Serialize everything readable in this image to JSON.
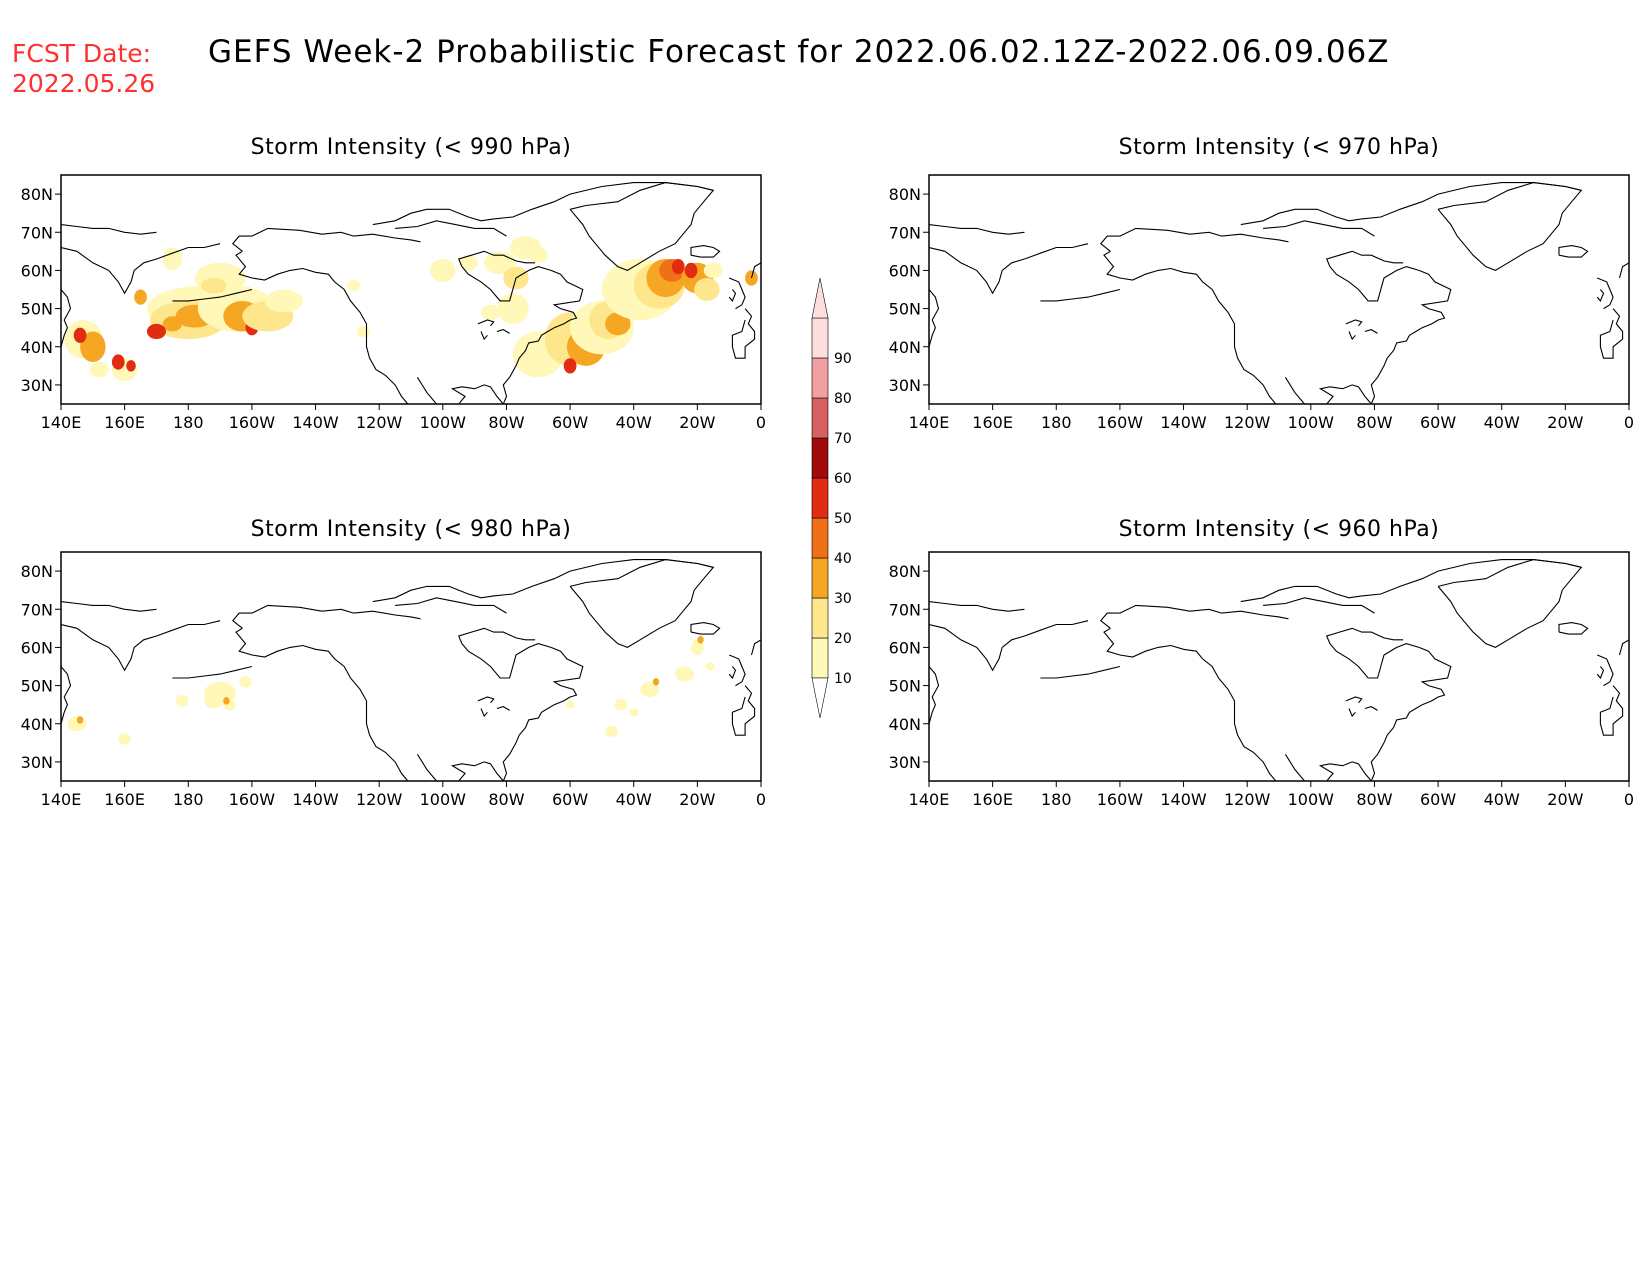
{
  "header": {
    "fcst_label": "FCST Date:",
    "fcst_date": "2022.05.26",
    "title": "GEFS Week-2 Probabilistic Forecast for 2022.06.02.12Z-2022.06.09.06Z"
  },
  "axes": {
    "lat_labels": [
      "30N",
      "40N",
      "50N",
      "60N",
      "70N",
      "80N"
    ],
    "lat_values": [
      30,
      40,
      50,
      60,
      70,
      80
    ],
    "lon_labels": [
      "140E",
      "160E",
      "180",
      "160W",
      "140W",
      "120W",
      "100W",
      "80W",
      "60W",
      "40W",
      "20W",
      "0"
    ],
    "lon_range": [
      140,
      360
    ],
    "lat_range": [
      25,
      85
    ]
  },
  "panels": [
    {
      "title": "Storm Intensity (< 990 hPa)",
      "probability_fields": "widespread"
    },
    {
      "title": "Storm Intensity (< 970 hPa)",
      "probability_fields": "none"
    },
    {
      "title": "Storm Intensity (< 980 hPa)",
      "probability_fields": "sparse"
    },
    {
      "title": "Storm Intensity (< 960 hPa)",
      "probability_fields": "none"
    }
  ],
  "colorbar": {
    "levels": [
      "10",
      "20",
      "30",
      "40",
      "50",
      "60",
      "70",
      "80",
      "90"
    ],
    "colors": [
      "#fff8b8",
      "#fee68c",
      "#f5a623",
      "#f07018",
      "#e02c10",
      "#a00a0a",
      "#d86060",
      "#f0a0a0",
      "#fcdede"
    ]
  },
  "colors": {
    "title_red": "#ff3030",
    "line": "#000000"
  }
}
